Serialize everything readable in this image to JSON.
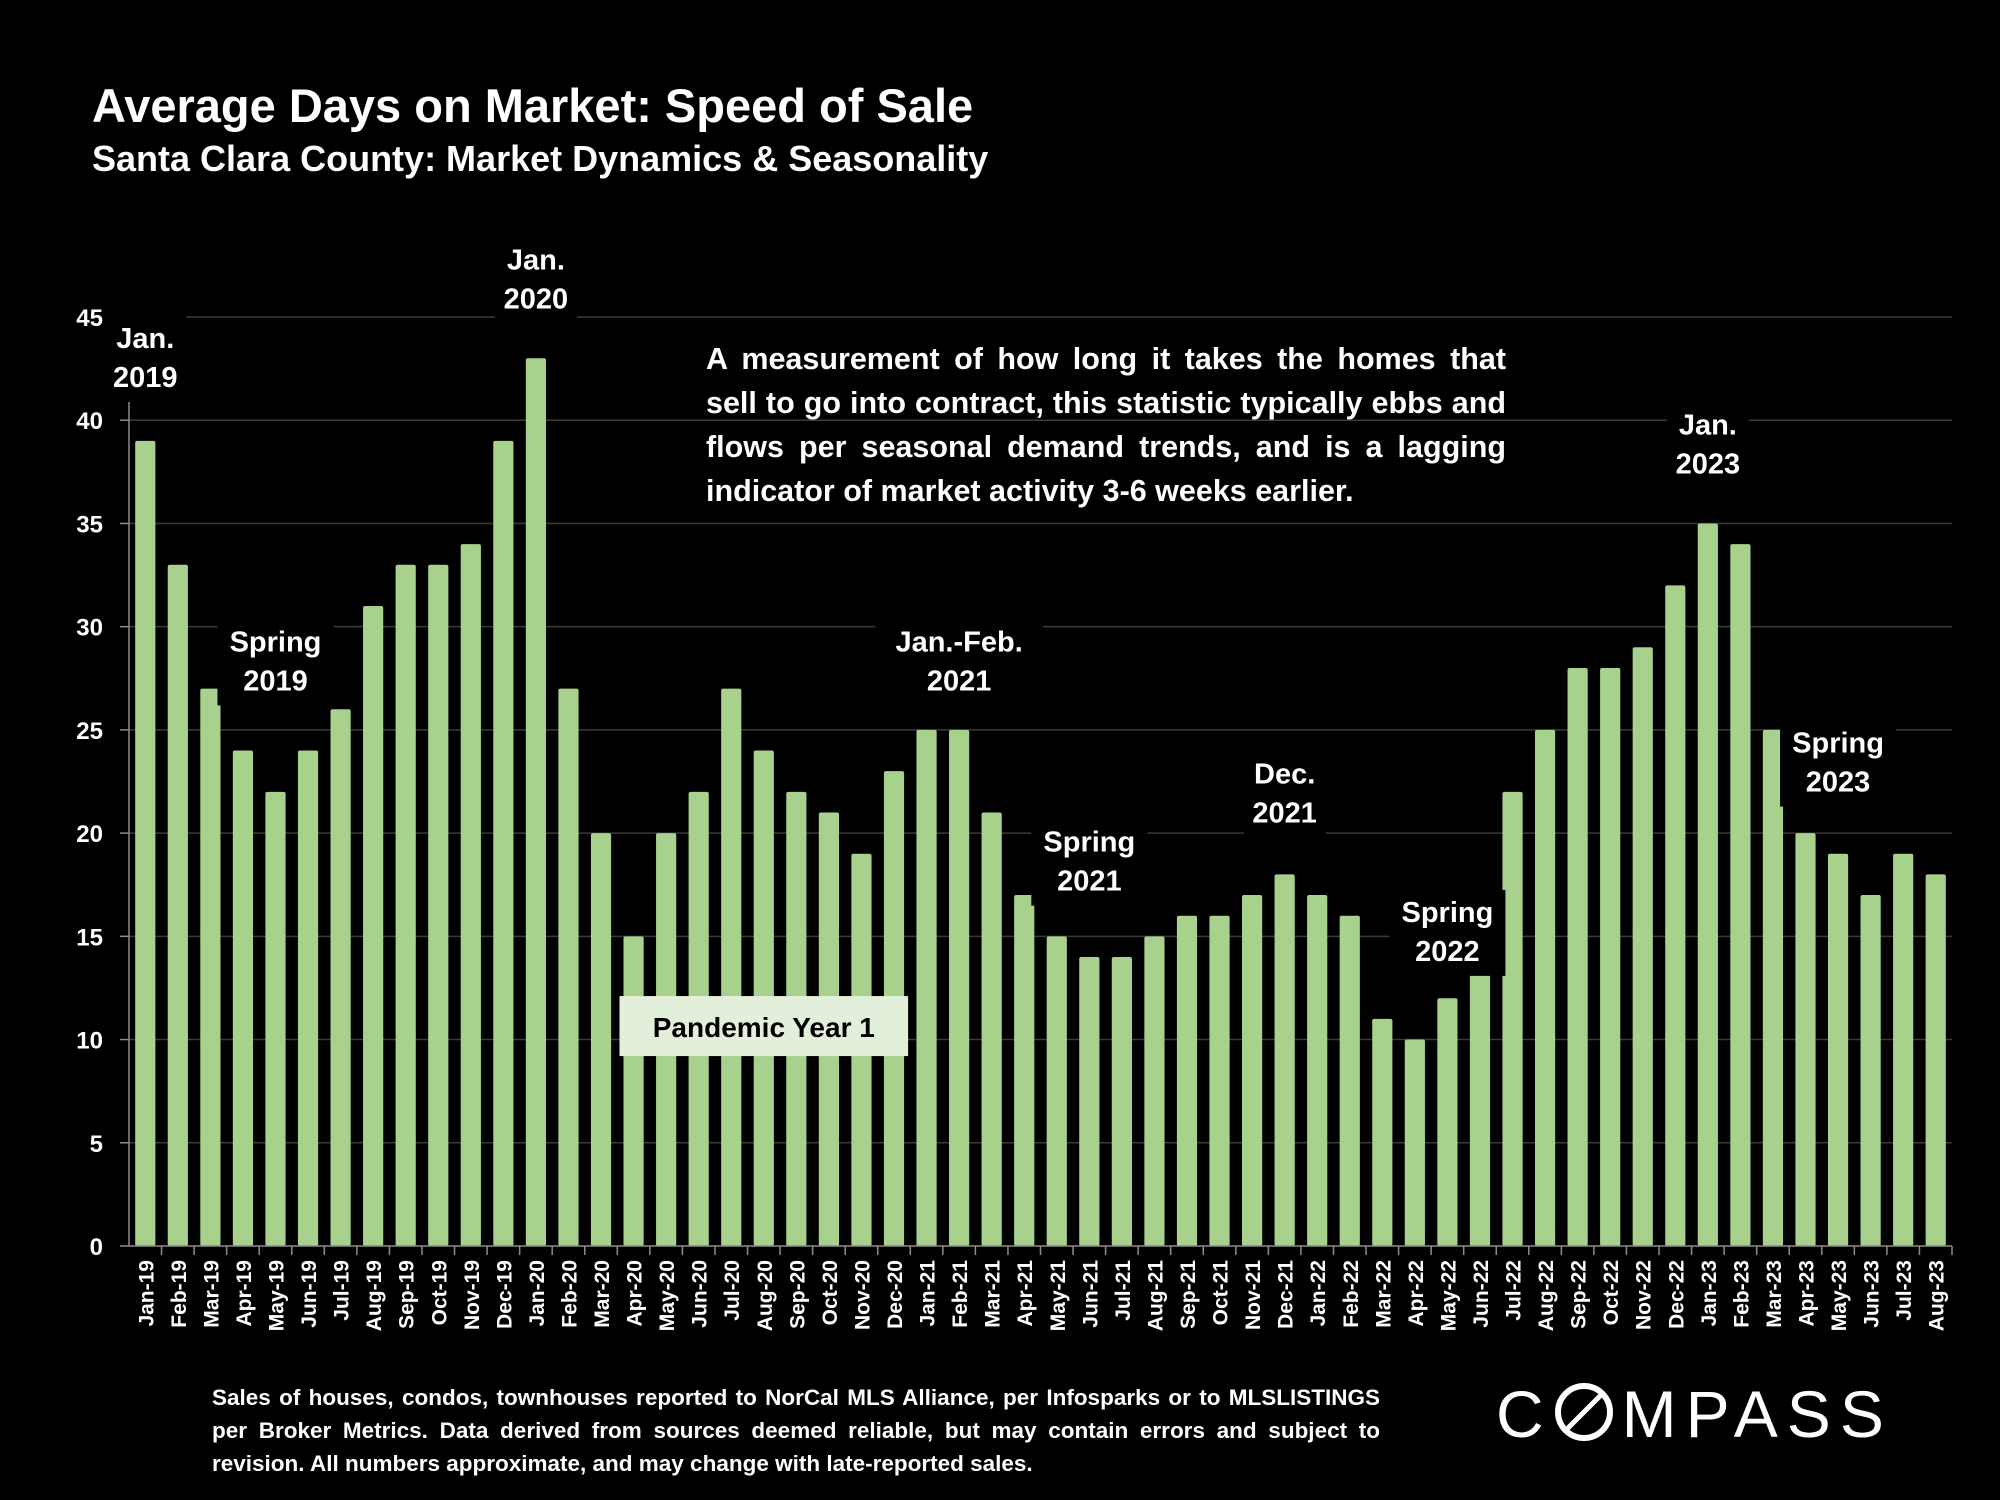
{
  "chart_data": {
    "type": "bar",
    "title": "Average Days on Market: Speed of Sale",
    "subtitle": "Santa Clara County: Market Dynamics & Seasonality",
    "categories": [
      "Jan-19",
      "Feb-19",
      "Mar-19",
      "Apr-19",
      "May-19",
      "Jun-19",
      "Jul-19",
      "Aug-19",
      "Sep-19",
      "Oct-19",
      "Nov-19",
      "Dec-19",
      "Jan-20",
      "Feb-20",
      "Mar-20",
      "Apr-20",
      "May-20",
      "Jun-20",
      "Jul-20",
      "Aug-20",
      "Sep-20",
      "Oct-20",
      "Nov-20",
      "Dec-20",
      "Jan-21",
      "Feb-21",
      "Mar-21",
      "Apr-21",
      "May-21",
      "Jun-21",
      "Jul-21",
      "Aug-21",
      "Sep-21",
      "Oct-21",
      "Nov-21",
      "Dec-21",
      "Jan-22",
      "Feb-22",
      "Mar-22",
      "Apr-22",
      "May-22",
      "Jun-22",
      "Jul-22",
      "Aug-22",
      "Sep-22",
      "Oct-22",
      "Nov-22",
      "Dec-22",
      "Jan-23",
      "Feb-23",
      "Mar-23",
      "Apr-23",
      "May-23",
      "Jun-23",
      "Jul-23",
      "Aug-23"
    ],
    "values": [
      39,
      33,
      27,
      24,
      22,
      24,
      26,
      31,
      33,
      33,
      34,
      39,
      43,
      27,
      20,
      15,
      20,
      22,
      27,
      24,
      22,
      21,
      19,
      23,
      25,
      25,
      21,
      17,
      15,
      14,
      14,
      15,
      16,
      16,
      17,
      18,
      17,
      16,
      11,
      10,
      12,
      14,
      22,
      25,
      28,
      28,
      29,
      32,
      35,
      34,
      25,
      20,
      19,
      17,
      19,
      18
    ],
    "ylim": [
      0,
      45
    ],
    "yticks": [
      0,
      5,
      10,
      15,
      20,
      25,
      30,
      35,
      40,
      45
    ],
    "grid": true,
    "bar_color": "#a9d18e",
    "annotations": [
      {
        "lines": [
          "Jan.",
          "2019"
        ],
        "category": "Jan-19",
        "y": 43.5
      },
      {
        "lines": [
          "Jan.",
          "2020"
        ],
        "category": "Jan-20",
        "y": 47.3
      },
      {
        "lines": [
          "Spring",
          "2019"
        ],
        "category": "May-19",
        "y": 28.8
      },
      {
        "lines": [
          "Jan.-Feb.",
          "2021"
        ],
        "category": "Feb-21",
        "y": 28.8
      },
      {
        "lines": [
          "Spring",
          "2021"
        ],
        "category": "Jun-21",
        "y": 19.1
      },
      {
        "lines": [
          "Dec.",
          "2021"
        ],
        "category": "Dec-21",
        "y": 22.4
      },
      {
        "lines": [
          "Spring",
          "2022"
        ],
        "category": "May-22",
        "y": 15.7
      },
      {
        "lines": [
          "Jan.",
          "2023"
        ],
        "category": "Jan-23",
        "y": 39.3
      },
      {
        "lines": [
          "Spring",
          "2023"
        ],
        "category": "May-23",
        "y": 23.9
      }
    ],
    "callout": {
      "text": "Pandemic Year 1",
      "x_from": "Apr-20",
      "x_to": "Dec-20",
      "y": 9.2
    }
  },
  "description": "A measurement of how long it takes the homes that sell to go into contract, this statistic typically ebbs and flows per seasonal demand trends, and is a lagging indicator of market activity 3-6 weeks earlier.",
  "footnote": "Sales of houses, condos, townhouses reported to NorCal MLS Alliance, per Infosparks or to MLSLISTINGS per Broker Metrics. Data derived from sources deemed reliable, but may contain errors and subject to revision. All numbers approximate, and may change with late-reported sales.",
  "logo": {
    "text": "COMPASS",
    "rest": "MPASS",
    "first": "C"
  }
}
